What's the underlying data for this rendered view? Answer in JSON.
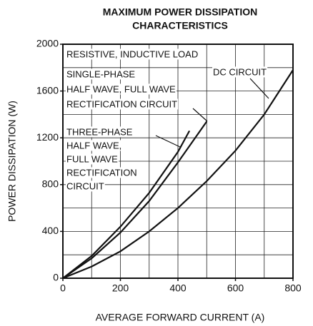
{
  "chart_data": {
    "type": "line",
    "title": [
      "MAXIMUM POWER DISSIPATION",
      "CHARACTERISTICS"
    ],
    "xlabel": "AVERAGE FORWARD CURRENT  (A)",
    "ylabel": "POWER DISSIPATION  (W)",
    "annotation": "RESISTIVE, INDUCTIVE LOAD",
    "xlim": [
      0,
      800
    ],
    "ylim": [
      0,
      2000
    ],
    "xticks": [
      0,
      200,
      400,
      600,
      800
    ],
    "yticks": [
      0,
      400,
      800,
      1200,
      1600,
      2000
    ],
    "xgrid": [
      0,
      100,
      200,
      300,
      400,
      500,
      600,
      700,
      800
    ],
    "ygrid": [
      0,
      200,
      400,
      600,
      800,
      1000,
      1200,
      1400,
      1600,
      1800,
      2000
    ],
    "grid": true,
    "series": [
      {
        "name": [
          "SINGLE-PHASE",
          "HALF WAVE, FULL WAVE",
          "RECTIFICATION CIRCUIT"
        ],
        "color": "#111111",
        "x": [
          0,
          100,
          200,
          300,
          400,
          500
        ],
        "values": [
          0,
          170,
          390,
          660,
          990,
          1340
        ]
      },
      {
        "name": [
          "THREE-PHASE",
          "HALF WAVE,",
          "FULL WAVE",
          "RECTIFICATION",
          "CIRCUIT"
        ],
        "color": "#111111",
        "x": [
          0,
          100,
          200,
          300,
          400,
          440
        ],
        "values": [
          0,
          190,
          440,
          730,
          1080,
          1260
        ]
      },
      {
        "name": [
          "DC CIRCUIT"
        ],
        "color": "#111111",
        "x": [
          0,
          100,
          200,
          300,
          400,
          500,
          600,
          700,
          800
        ],
        "values": [
          0,
          100,
          230,
          400,
          600,
          830,
          1090,
          1400,
          1780
        ]
      }
    ]
  }
}
